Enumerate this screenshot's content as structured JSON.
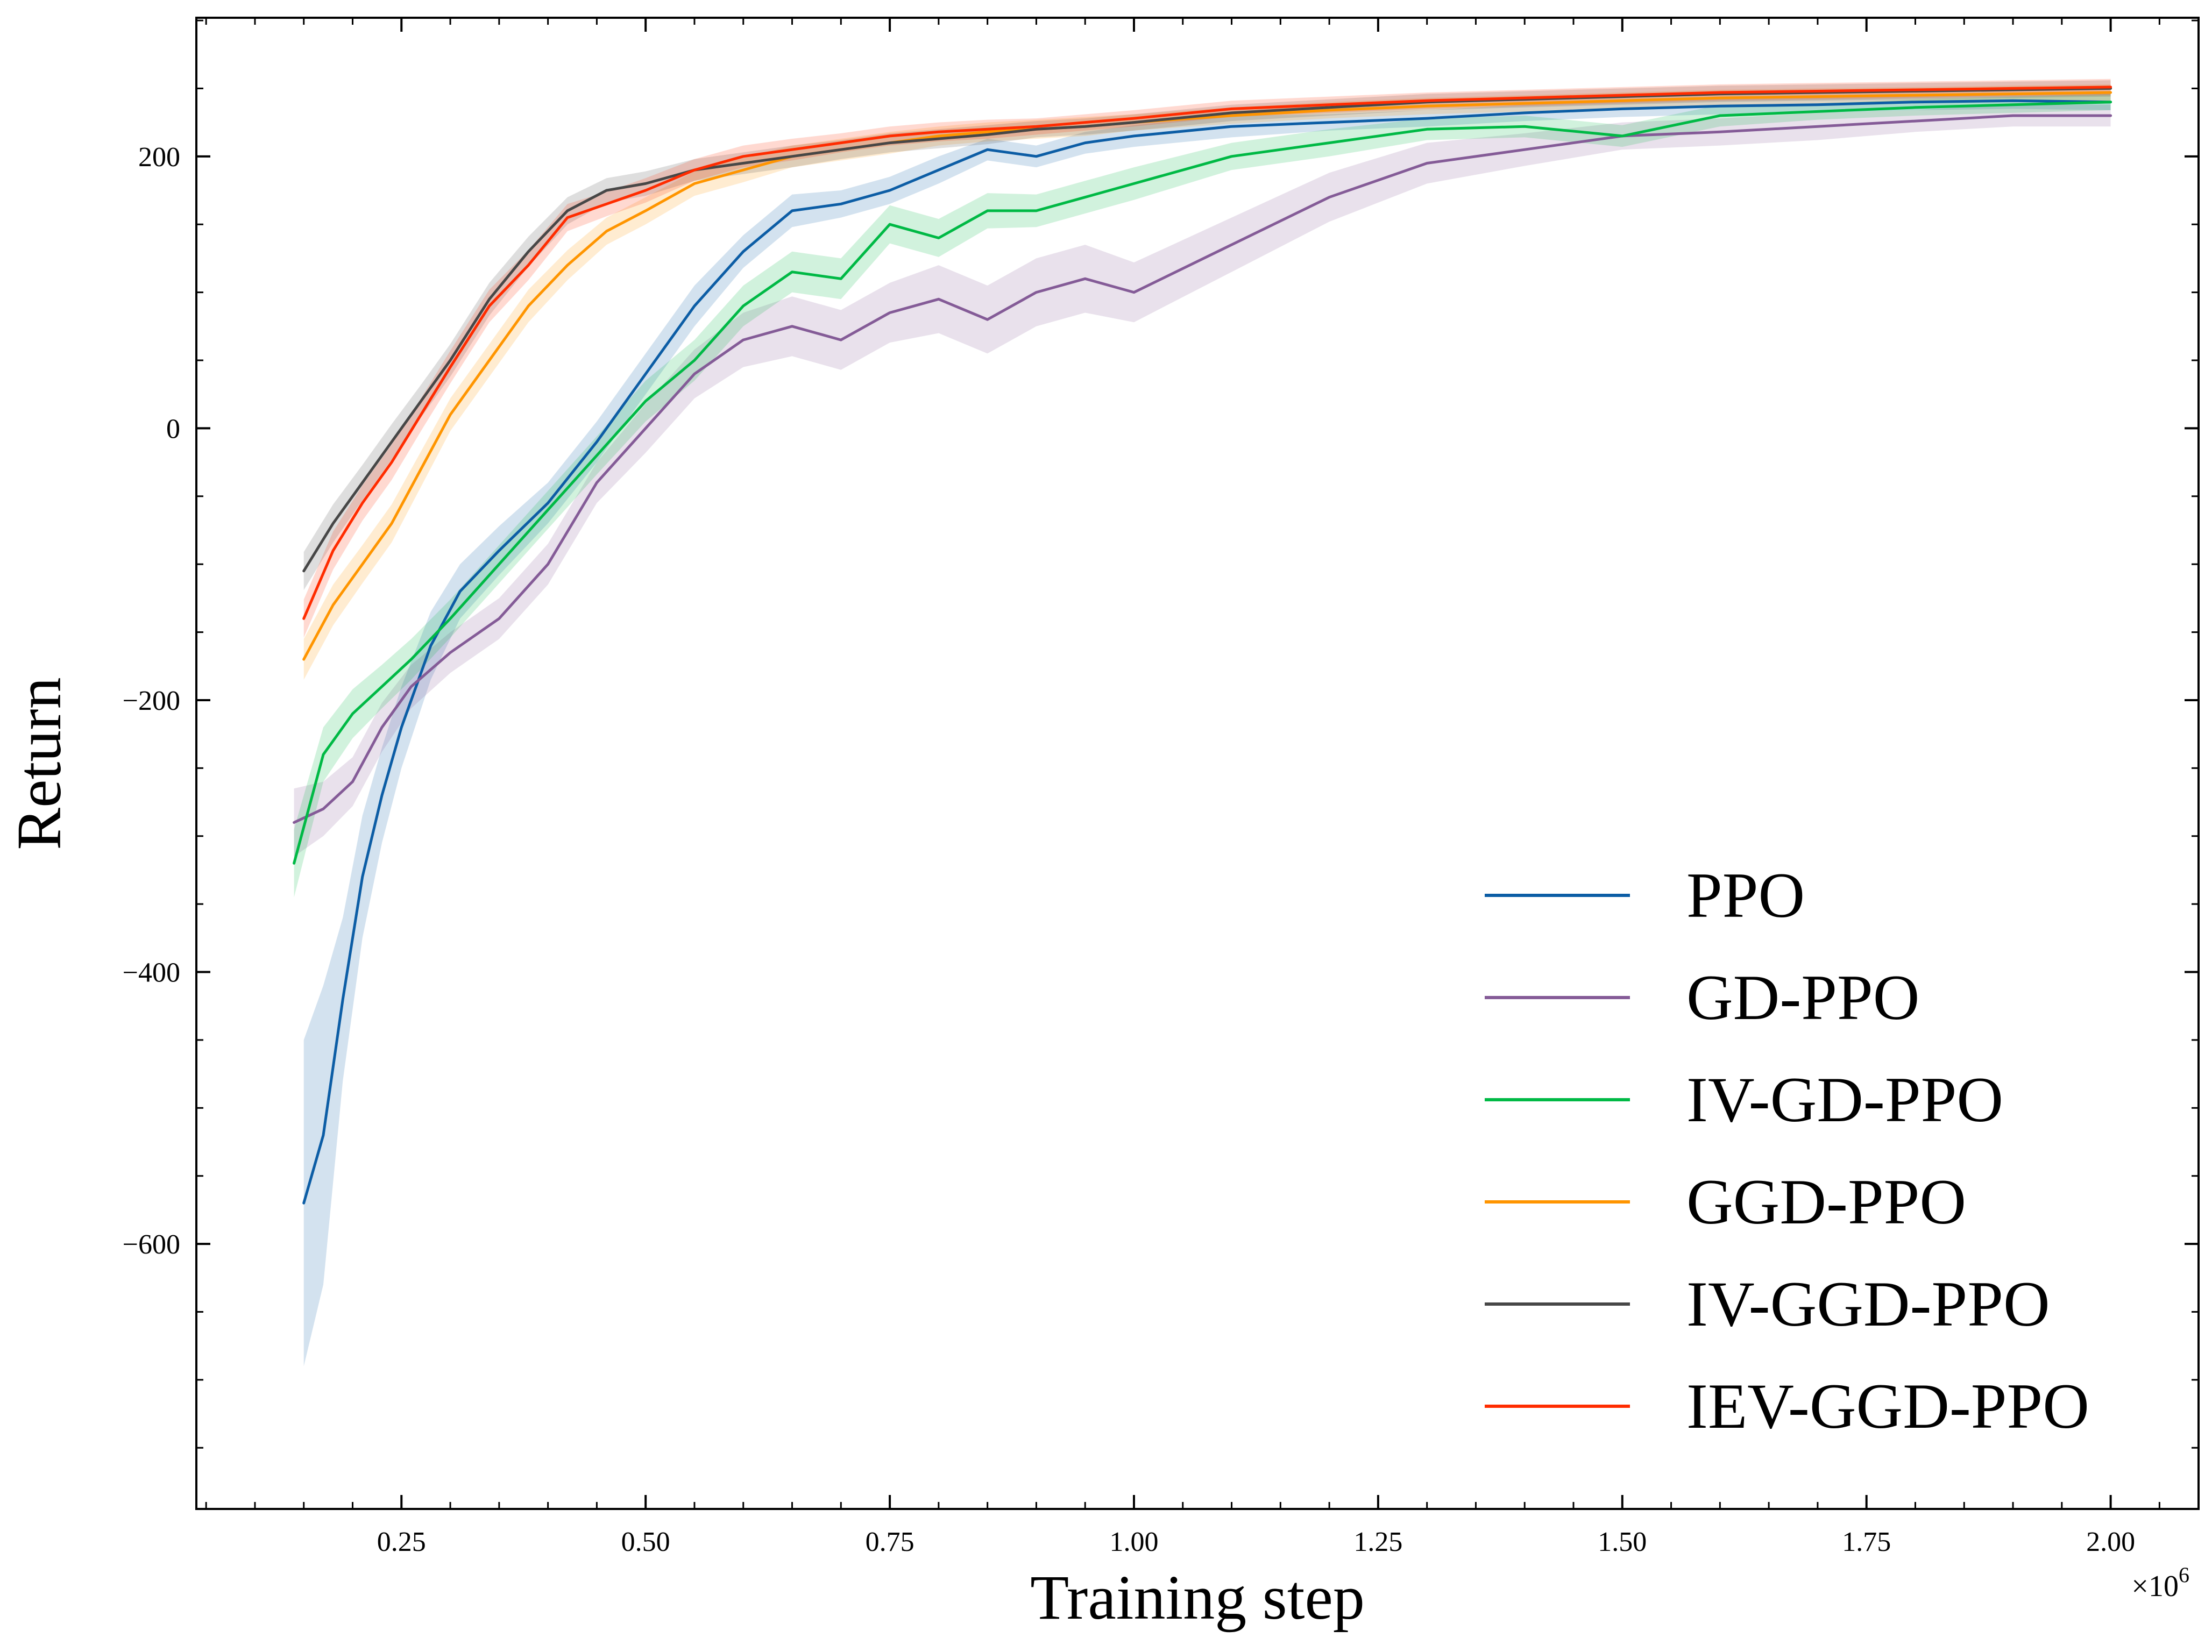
{
  "chart_data": {
    "type": "line",
    "title": "",
    "xlabel": "Training step",
    "ylabel": "Return",
    "x_multiplier_label": "×10",
    "x_multiplier_exp": "6",
    "xlim": [
      0.04,
      2.09
    ],
    "ylim": [
      -795,
      302
    ],
    "xticks": [
      0.25,
      0.5,
      0.75,
      1.0,
      1.25,
      1.5,
      1.75,
      2.0
    ],
    "xtick_labels": [
      "0.25",
      "0.50",
      "0.75",
      "1.00",
      "1.25",
      "1.50",
      "1.75",
      "2.00"
    ],
    "yticks": [
      -600,
      -400,
      -200,
      0,
      200
    ],
    "ytick_labels": [
      "−600",
      "−400",
      "−200",
      "0",
      "200"
    ],
    "grid": false,
    "legend_position": "bottom-right",
    "series": [
      {
        "name": "PPO",
        "color": "#0C5DA5",
        "x": [
          0.15,
          0.17,
          0.19,
          0.21,
          0.23,
          0.25,
          0.28,
          0.31,
          0.35,
          0.4,
          0.45,
          0.5,
          0.55,
          0.6,
          0.65,
          0.7,
          0.75,
          0.8,
          0.85,
          0.9,
          0.95,
          1.0,
          1.1,
          1.2,
          1.3,
          1.4,
          1.5,
          1.6,
          1.7,
          1.8,
          1.9,
          2.0
        ],
        "y": [
          -570,
          -520,
          -420,
          -330,
          -270,
          -220,
          -160,
          -120,
          -90,
          -55,
          -10,
          40,
          90,
          130,
          160,
          165,
          175,
          190,
          205,
          200,
          210,
          215,
          222,
          225,
          228,
          232,
          235,
          237,
          238,
          240,
          241,
          240
        ],
        "band": [
          120,
          110,
          60,
          45,
          35,
          30,
          25,
          20,
          18,
          15,
          15,
          15,
          15,
          12,
          12,
          10,
          10,
          10,
          8,
          8,
          8,
          8,
          8,
          6,
          6,
          6,
          6,
          6,
          6,
          6,
          6,
          6
        ]
      },
      {
        "name": "GD-PPO",
        "color": "#845B97",
        "x": [
          0.14,
          0.17,
          0.2,
          0.23,
          0.26,
          0.3,
          0.35,
          0.4,
          0.45,
          0.5,
          0.55,
          0.6,
          0.65,
          0.7,
          0.75,
          0.8,
          0.85,
          0.9,
          0.95,
          1.0,
          1.1,
          1.2,
          1.3,
          1.4,
          1.5,
          1.6,
          1.7,
          1.8,
          1.9,
          2.0
        ],
        "y": [
          -290,
          -280,
          -260,
          -220,
          -190,
          -165,
          -140,
          -100,
          -40,
          0,
          40,
          65,
          75,
          65,
          85,
          95,
          80,
          100,
          110,
          100,
          135,
          170,
          195,
          205,
          215,
          218,
          222,
          226,
          230,
          230
        ],
        "band": [
          25,
          20,
          18,
          18,
          16,
          15,
          15,
          15,
          15,
          18,
          18,
          20,
          22,
          22,
          22,
          25,
          25,
          25,
          25,
          22,
          20,
          18,
          15,
          12,
          10,
          10,
          10,
          8,
          8,
          8
        ]
      },
      {
        "name": "IV-GD-PPO",
        "color": "#00B945",
        "x": [
          0.14,
          0.17,
          0.2,
          0.23,
          0.26,
          0.3,
          0.35,
          0.4,
          0.45,
          0.5,
          0.55,
          0.6,
          0.65,
          0.7,
          0.75,
          0.8,
          0.85,
          0.9,
          0.95,
          1.0,
          1.1,
          1.2,
          1.3,
          1.4,
          1.5,
          1.6,
          1.7,
          1.8,
          1.9,
          2.0
        ],
        "y": [
          -320,
          -240,
          -210,
          -190,
          -170,
          -140,
          -100,
          -60,
          -20,
          20,
          50,
          90,
          115,
          110,
          150,
          140,
          160,
          160,
          170,
          180,
          200,
          210,
          220,
          222,
          215,
          230,
          233,
          236,
          238,
          240
        ],
        "band": [
          25,
          20,
          18,
          16,
          15,
          14,
          14,
          14,
          14,
          15,
          15,
          15,
          15,
          15,
          14,
          14,
          13,
          12,
          12,
          12,
          10,
          10,
          8,
          8,
          8,
          8,
          6,
          6,
          6,
          6
        ]
      },
      {
        "name": "GGD-PPO",
        "color": "#FF9500",
        "x": [
          0.15,
          0.18,
          0.21,
          0.24,
          0.27,
          0.3,
          0.34,
          0.38,
          0.42,
          0.46,
          0.5,
          0.55,
          0.6,
          0.65,
          0.7,
          0.75,
          0.8,
          0.85,
          0.9,
          0.95,
          1.0,
          1.1,
          1.2,
          1.3,
          1.4,
          1.5,
          1.6,
          1.7,
          1.8,
          1.9,
          2.0
        ],
        "y": [
          -170,
          -130,
          -100,
          -70,
          -30,
          10,
          50,
          90,
          120,
          145,
          160,
          180,
          190,
          200,
          205,
          210,
          215,
          218,
          220,
          222,
          225,
          230,
          234,
          237,
          239,
          241,
          243,
          244,
          245,
          246,
          247
        ],
        "band": [
          15,
          15,
          14,
          14,
          13,
          12,
          12,
          12,
          11,
          10,
          10,
          9,
          9,
          8,
          8,
          8,
          7,
          7,
          7,
          7,
          6,
          6,
          6,
          6,
          6,
          6,
          6,
          6,
          6,
          6,
          6
        ]
      },
      {
        "name": "IV-GGD-PPO",
        "color": "#474747",
        "x": [
          0.15,
          0.18,
          0.21,
          0.24,
          0.27,
          0.3,
          0.34,
          0.38,
          0.42,
          0.46,
          0.5,
          0.55,
          0.6,
          0.65,
          0.7,
          0.75,
          0.8,
          0.85,
          0.9,
          0.95,
          1.0,
          1.1,
          1.2,
          1.3,
          1.4,
          1.5,
          1.6,
          1.7,
          1.8,
          1.9,
          2.0
        ],
        "y": [
          -105,
          -70,
          -40,
          -10,
          20,
          50,
          95,
          130,
          160,
          175,
          180,
          190,
          195,
          200,
          205,
          210,
          213,
          216,
          220,
          222,
          225,
          232,
          236,
          240,
          242,
          244,
          246,
          247,
          248,
          249,
          250
        ],
        "band": [
          14,
          14,
          13,
          13,
          12,
          12,
          12,
          11,
          10,
          9,
          9,
          8,
          8,
          8,
          7,
          7,
          7,
          7,
          6,
          6,
          6,
          6,
          6,
          6,
          6,
          6,
          6,
          6,
          6,
          6,
          6
        ]
      },
      {
        "name": "IEV-GGD-PPO",
        "color": "#FF2C00",
        "x": [
          0.15,
          0.18,
          0.21,
          0.24,
          0.27,
          0.3,
          0.34,
          0.38,
          0.42,
          0.46,
          0.5,
          0.55,
          0.6,
          0.65,
          0.7,
          0.75,
          0.8,
          0.85,
          0.9,
          0.95,
          1.0,
          1.1,
          1.2,
          1.3,
          1.4,
          1.5,
          1.6,
          1.7,
          1.8,
          1.9,
          2.0
        ],
        "y": [
          -140,
          -90,
          -55,
          -25,
          10,
          45,
          90,
          120,
          155,
          165,
          175,
          190,
          200,
          205,
          210,
          215,
          218,
          220,
          222,
          225,
          228,
          235,
          238,
          241,
          243,
          245,
          247,
          248,
          249,
          250,
          251
        ],
        "band": [
          14,
          14,
          13,
          13,
          12,
          12,
          12,
          11,
          10,
          9,
          9,
          8,
          8,
          8,
          7,
          7,
          7,
          7,
          6,
          6,
          6,
          6,
          6,
          6,
          6,
          6,
          6,
          6,
          6,
          6,
          6
        ]
      }
    ]
  }
}
